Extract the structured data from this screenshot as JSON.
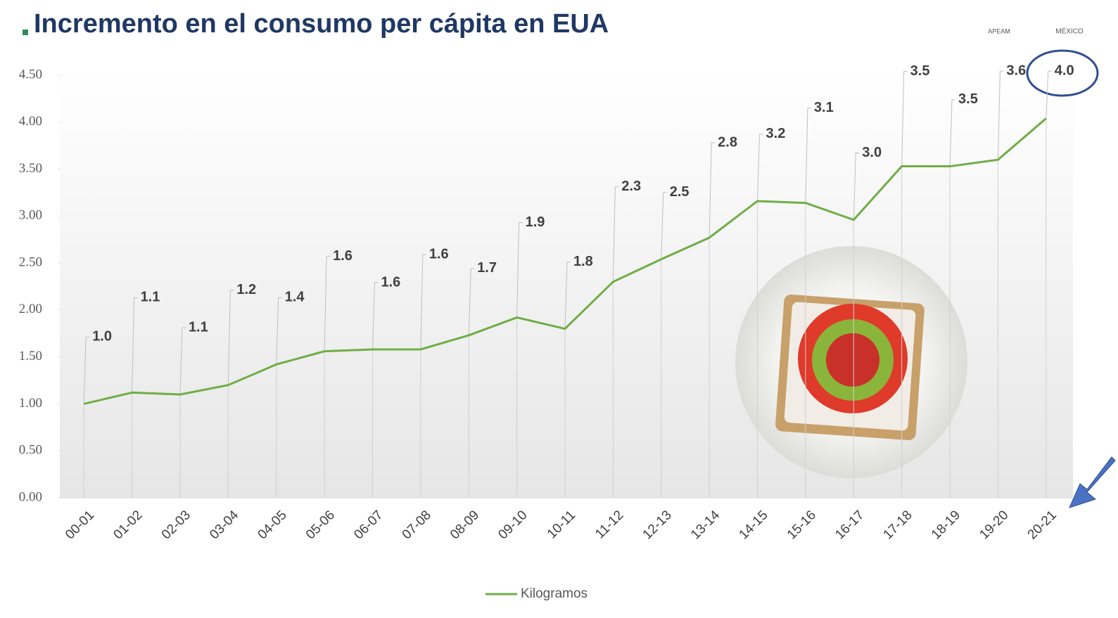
{
  "header": {
    "logo_left": "APEAM",
    "logo_right": "MÉXICO"
  },
  "chart_data": {
    "type": "line",
    "title": "Incremento en el consumo per cápita en EUA",
    "categories": [
      "00-01",
      "01-02",
      "02-03",
      "03-04",
      "04-05",
      "05-06",
      "06-07",
      "07-08",
      "08-09",
      "09-10",
      "10-11",
      "11-12",
      "12-13",
      "13-14",
      "14-15",
      "15-16",
      "16-17",
      "17-18",
      "18-19",
      "19-20",
      "20-21"
    ],
    "series": [
      {
        "name": "Kilogramos",
        "color": "#70ad47",
        "values": [
          1.0,
          1.12,
          1.1,
          1.2,
          1.42,
          1.56,
          1.58,
          1.58,
          1.73,
          1.92,
          1.8,
          2.3,
          2.54,
          2.77,
          3.16,
          3.14,
          2.96,
          3.53,
          3.53,
          3.6,
          4.04
        ],
        "value_labels": [
          "1.0",
          "1.1",
          "1.1",
          "1.2",
          "1.4",
          "1.6",
          "1.6",
          "1.6",
          "1.7",
          "1.9",
          "1.8",
          "2.3",
          "2.5",
          "2.8",
          "3.2",
          "3.1",
          "3.0",
          "3.5",
          "3.5",
          "3.6",
          "4.0"
        ]
      }
    ],
    "ylim": [
      0,
      4.5
    ],
    "yticks": [
      {
        "value": 0,
        "label": "0.00"
      },
      {
        "value": 0.5,
        "label": "0.50"
      },
      {
        "value": 1,
        "label": "1.00"
      },
      {
        "value": 1.5,
        "label": "1.50"
      },
      {
        "value": 2,
        "label": "2.00"
      },
      {
        "value": 2.5,
        "label": "2.50"
      },
      {
        "value": 3,
        "label": "3.00"
      },
      {
        "value": 3.5,
        "label": "3.50"
      },
      {
        "value": 4,
        "label": "4.00"
      },
      {
        "value": 4.5,
        "label": "4.50"
      }
    ],
    "legend": "bottom"
  }
}
